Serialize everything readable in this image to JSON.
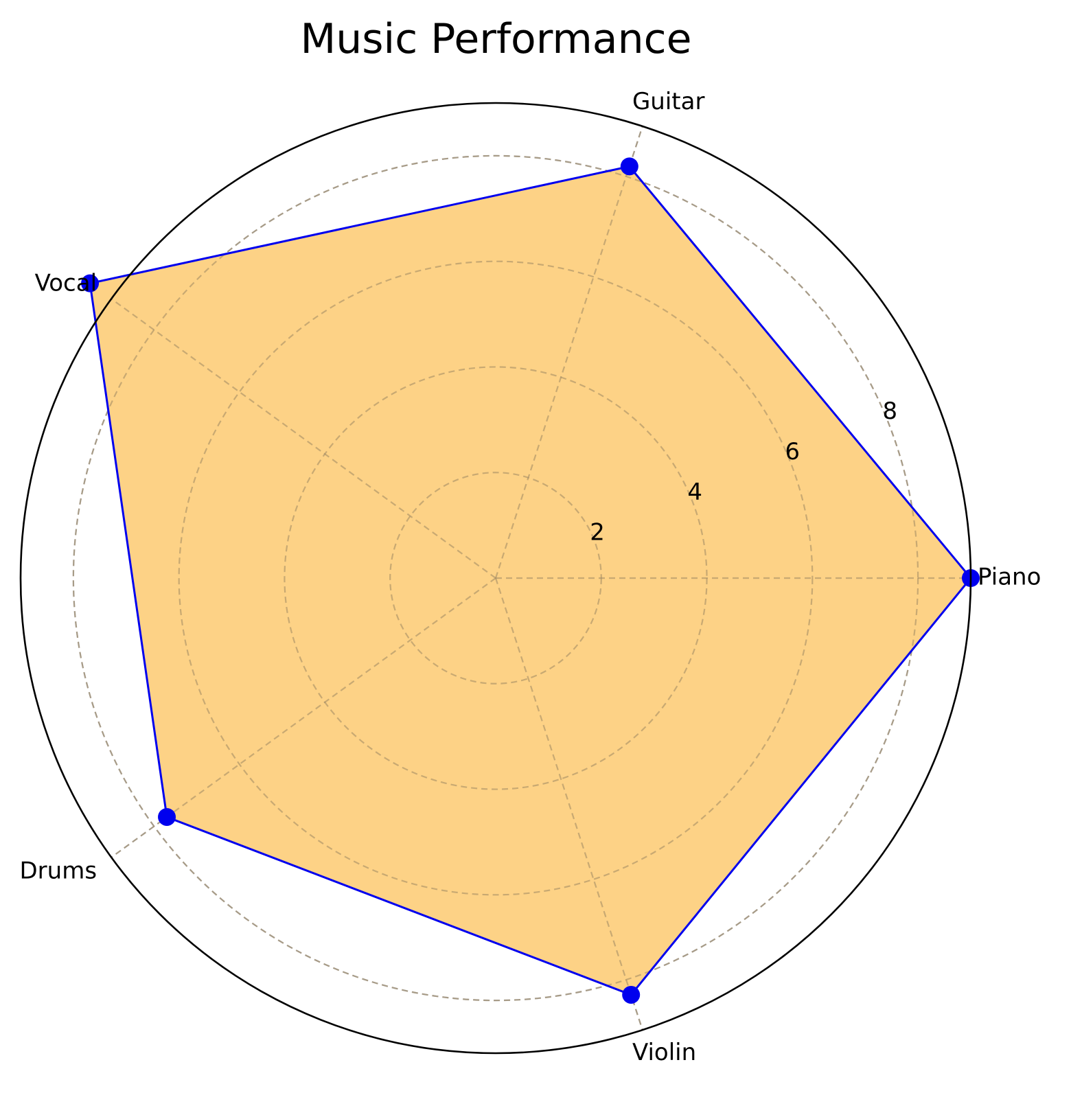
{
  "chart_data": {
    "type": "radar",
    "title": "Music Performance",
    "categories": [
      "Piano",
      "Guitar",
      "Vocal",
      "Drums",
      "Violin"
    ],
    "series": [
      {
        "values": [
          9.0,
          8.2,
          9.5,
          7.7,
          8.3
        ]
      }
    ],
    "rlim": [
      0,
      9
    ],
    "r_ticks": [
      2,
      4,
      6,
      8
    ],
    "grid": true,
    "colors": {
      "fill": "#fdd080",
      "line": "#0000ee",
      "marker": "#0000ee",
      "grid": "#b0b0b0",
      "frame": "#000000"
    }
  }
}
